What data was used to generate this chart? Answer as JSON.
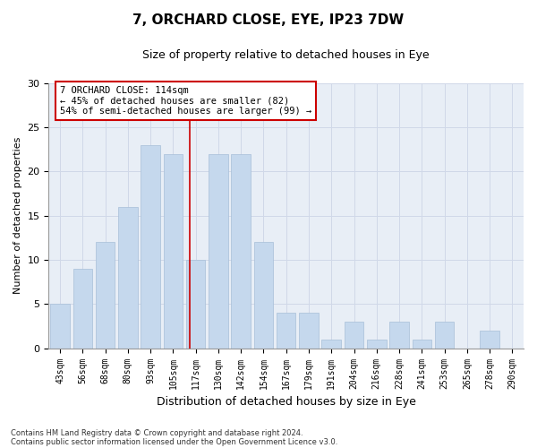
{
  "title": "7, ORCHARD CLOSE, EYE, IP23 7DW",
  "subtitle": "Size of property relative to detached houses in Eye",
  "xlabel": "Distribution of detached houses by size in Eye",
  "ylabel": "Number of detached properties",
  "bar_labels": [
    "43sqm",
    "56sqm",
    "68sqm",
    "80sqm",
    "93sqm",
    "105sqm",
    "117sqm",
    "130sqm",
    "142sqm",
    "154sqm",
    "167sqm",
    "179sqm",
    "191sqm",
    "204sqm",
    "216sqm",
    "228sqm",
    "241sqm",
    "253sqm",
    "265sqm",
    "278sqm",
    "290sqm"
  ],
  "bar_values": [
    5,
    9,
    12,
    16,
    23,
    22,
    10,
    22,
    22,
    12,
    4,
    4,
    1,
    3,
    1,
    3,
    1,
    3,
    0,
    2,
    0
  ],
  "bar_color": "#c5d8ed",
  "bar_edge_color": "#a8bfd8",
  "bar_width": 0.85,
  "ylim": [
    0,
    30
  ],
  "yticks": [
    0,
    5,
    10,
    15,
    20,
    25,
    30
  ],
  "property_line_x": 5.75,
  "property_line_color": "#cc0000",
  "annotation_text": "7 ORCHARD CLOSE: 114sqm\n← 45% of detached houses are smaller (82)\n54% of semi-detached houses are larger (99) →",
  "annotation_box_color": "#ffffff",
  "annotation_box_edge": "#cc0000",
  "footnote1": "Contains HM Land Registry data © Crown copyright and database right 2024.",
  "footnote2": "Contains public sector information licensed under the Open Government Licence v3.0.",
  "grid_color": "#d0d8e8",
  "background_color": "#e8eef6",
  "title_fontsize": 11,
  "subtitle_fontsize": 9,
  "ylabel_fontsize": 8,
  "xlabel_fontsize": 9
}
